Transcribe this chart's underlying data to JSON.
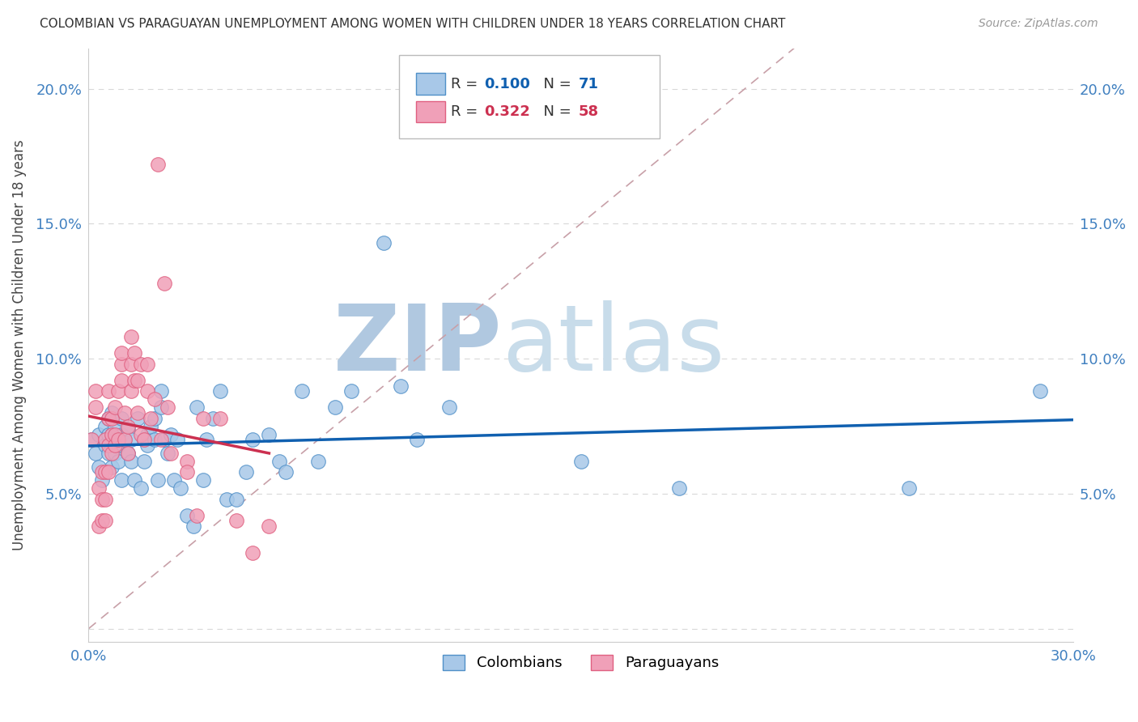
{
  "title": "COLOMBIAN VS PARAGUAYAN UNEMPLOYMENT AMONG WOMEN WITH CHILDREN UNDER 18 YEARS CORRELATION CHART",
  "source": "Source: ZipAtlas.com",
  "ylabel": "Unemployment Among Women with Children Under 18 years",
  "xlim": [
    0,
    0.3
  ],
  "ylim": [
    -0.005,
    0.215
  ],
  "colombians_R": 0.1,
  "colombians_N": 71,
  "paraguayans_R": 0.322,
  "paraguayans_N": 58,
  "col_color": "#a8c8e8",
  "par_color": "#f0a0b8",
  "col_edge_color": "#5090c8",
  "par_edge_color": "#e06080",
  "col_trend_color": "#1060b0",
  "par_trend_color": "#cc3050",
  "ref_line_color": "#c8a0a8",
  "watermark_zip_color": "#b8cce0",
  "watermark_atlas_color": "#c0d8e8",
  "background_color": "#ffffff",
  "grid_color": "#d8d8d8",
  "tick_label_color": "#4080c0",
  "colombians_x": [
    0.001,
    0.002,
    0.003,
    0.003,
    0.004,
    0.005,
    0.005,
    0.006,
    0.006,
    0.006,
    0.007,
    0.007,
    0.007,
    0.008,
    0.008,
    0.008,
    0.009,
    0.009,
    0.01,
    0.01,
    0.01,
    0.011,
    0.012,
    0.012,
    0.013,
    0.013,
    0.014,
    0.015,
    0.016,
    0.017,
    0.017,
    0.018,
    0.018,
    0.019,
    0.02,
    0.02,
    0.021,
    0.022,
    0.022,
    0.023,
    0.024,
    0.025,
    0.026,
    0.027,
    0.028,
    0.03,
    0.032,
    0.033,
    0.035,
    0.036,
    0.038,
    0.04,
    0.042,
    0.045,
    0.048,
    0.05,
    0.055,
    0.058,
    0.06,
    0.065,
    0.07,
    0.075,
    0.08,
    0.09,
    0.095,
    0.1,
    0.11,
    0.15,
    0.18,
    0.25,
    0.29
  ],
  "colombians_y": [
    0.07,
    0.065,
    0.072,
    0.06,
    0.055,
    0.075,
    0.068,
    0.078,
    0.065,
    0.072,
    0.06,
    0.072,
    0.08,
    0.07,
    0.065,
    0.075,
    0.068,
    0.062,
    0.072,
    0.055,
    0.078,
    0.07,
    0.065,
    0.074,
    0.07,
    0.062,
    0.055,
    0.078,
    0.052,
    0.07,
    0.062,
    0.072,
    0.068,
    0.075,
    0.07,
    0.078,
    0.055,
    0.088,
    0.082,
    0.07,
    0.065,
    0.072,
    0.055,
    0.07,
    0.052,
    0.042,
    0.038,
    0.082,
    0.055,
    0.07,
    0.078,
    0.088,
    0.048,
    0.048,
    0.058,
    0.07,
    0.072,
    0.062,
    0.058,
    0.088,
    0.062,
    0.082,
    0.088,
    0.143,
    0.09,
    0.07,
    0.082,
    0.062,
    0.052,
    0.052,
    0.088
  ],
  "paraguayans_x": [
    0.001,
    0.002,
    0.002,
    0.003,
    0.003,
    0.004,
    0.004,
    0.004,
    0.005,
    0.005,
    0.005,
    0.005,
    0.006,
    0.006,
    0.006,
    0.006,
    0.007,
    0.007,
    0.007,
    0.008,
    0.008,
    0.008,
    0.009,
    0.009,
    0.01,
    0.01,
    0.01,
    0.011,
    0.011,
    0.012,
    0.012,
    0.013,
    0.013,
    0.013,
    0.014,
    0.014,
    0.015,
    0.015,
    0.016,
    0.016,
    0.017,
    0.018,
    0.018,
    0.019,
    0.02,
    0.021,
    0.022,
    0.023,
    0.024,
    0.025,
    0.03,
    0.03,
    0.033,
    0.035,
    0.04,
    0.045,
    0.05,
    0.055
  ],
  "paraguayans_y": [
    0.07,
    0.082,
    0.088,
    0.038,
    0.052,
    0.04,
    0.048,
    0.058,
    0.048,
    0.04,
    0.058,
    0.07,
    0.058,
    0.068,
    0.078,
    0.088,
    0.065,
    0.072,
    0.078,
    0.068,
    0.072,
    0.082,
    0.07,
    0.088,
    0.092,
    0.098,
    0.102,
    0.07,
    0.08,
    0.065,
    0.075,
    0.088,
    0.098,
    0.108,
    0.092,
    0.102,
    0.08,
    0.092,
    0.072,
    0.098,
    0.07,
    0.088,
    0.098,
    0.078,
    0.085,
    0.172,
    0.07,
    0.128,
    0.082,
    0.065,
    0.062,
    0.058,
    0.042,
    0.078,
    0.078,
    0.04,
    0.028,
    0.038
  ]
}
